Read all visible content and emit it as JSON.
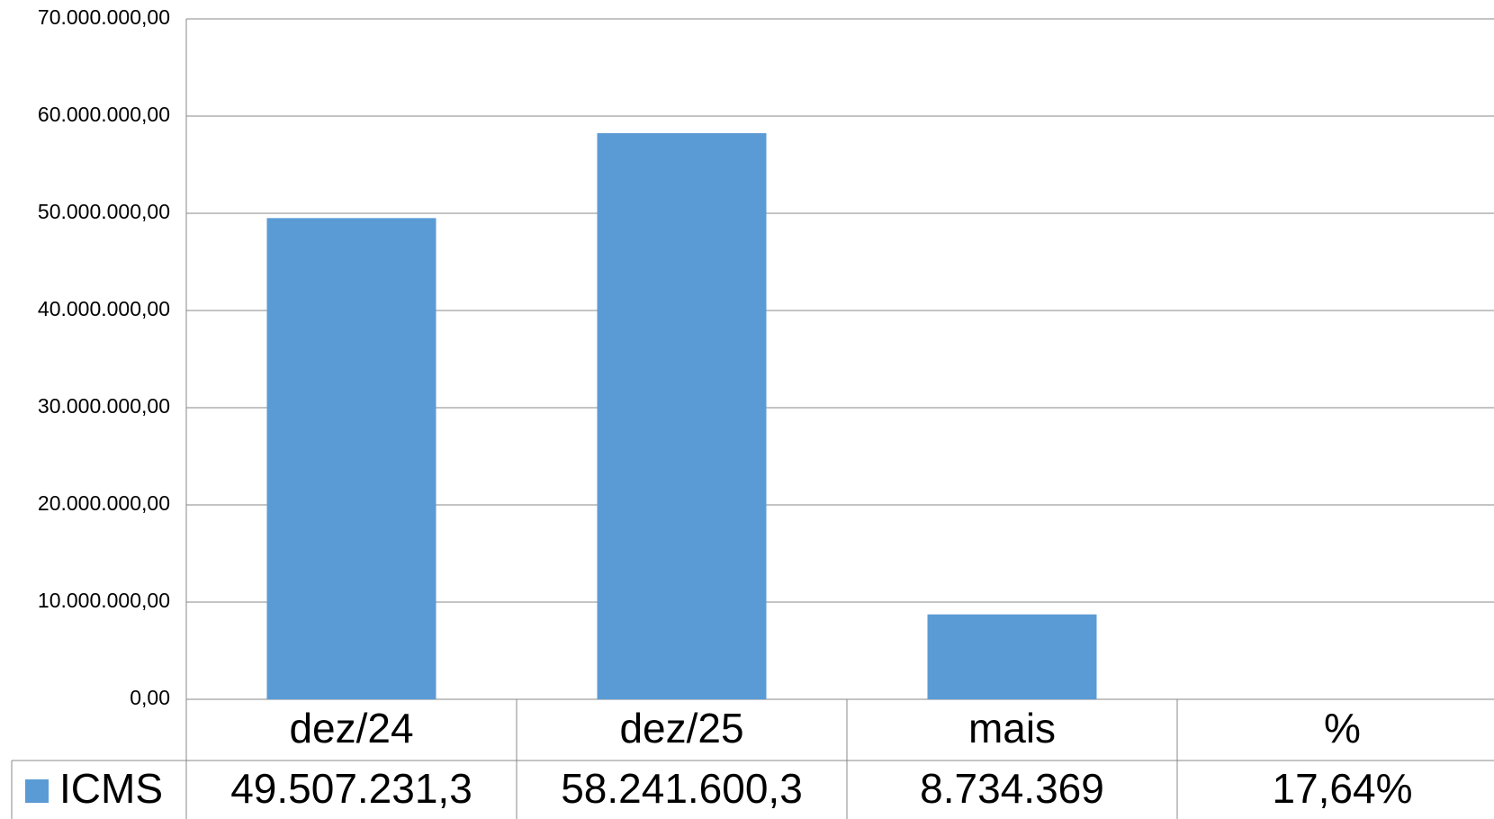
{
  "chart_data": {
    "type": "bar",
    "categories": [
      "dez/24",
      "dez/25",
      "mais",
      "%"
    ],
    "series": [
      {
        "name": "ICMS",
        "color": "#5b9bd5",
        "values": [
          49507231.3,
          58241600.3,
          8734369,
          17.64
        ],
        "value_labels": [
          "49.507.231,3",
          "58.241.600,3",
          "8.734.369",
          "17,64%"
        ]
      }
    ],
    "ylim": [
      0,
      70000000
    ],
    "yticks": [
      {
        "value": 0,
        "label": "0,00"
      },
      {
        "value": 10000000,
        "label": "10.000.000,00"
      },
      {
        "value": 20000000,
        "label": "20.000.000,00"
      },
      {
        "value": 30000000,
        "label": "30.000.000,00"
      },
      {
        "value": 40000000,
        "label": "40.000.000,00"
      },
      {
        "value": 50000000,
        "label": "50.000.000,00"
      },
      {
        "value": 60000000,
        "label": "60.000.000,00"
      },
      {
        "value": 70000000,
        "label": "70.000.000,00"
      }
    ],
    "grid": true
  }
}
